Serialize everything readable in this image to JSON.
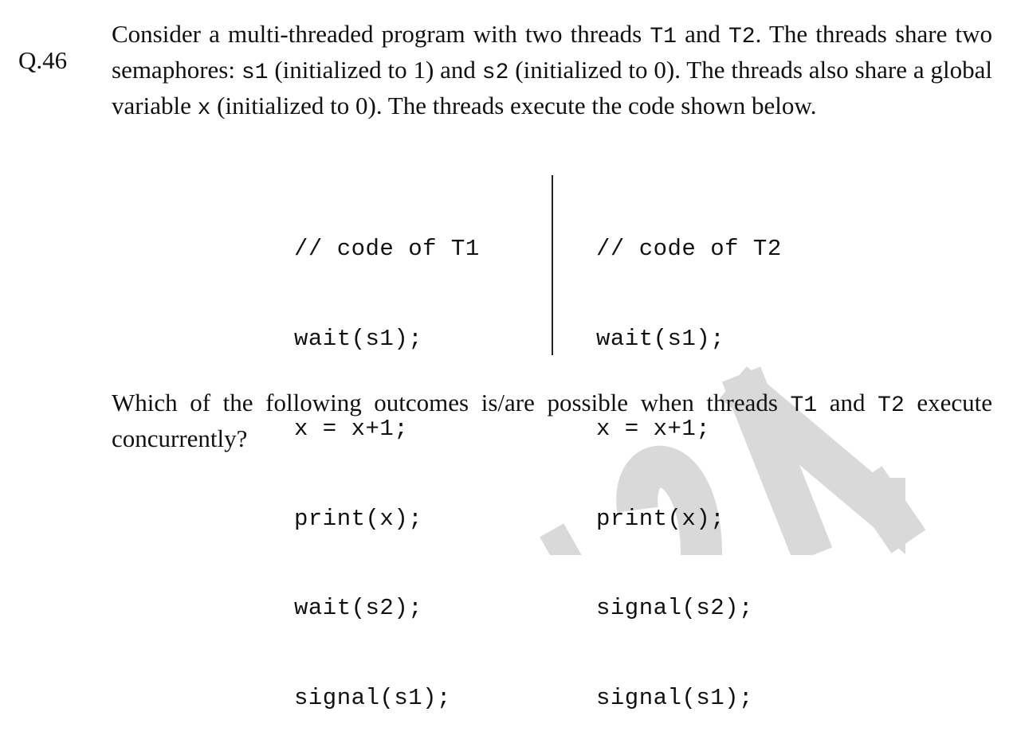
{
  "question": {
    "number": "Q.46",
    "stem": {
      "s1": "Consider a multi-threaded program with two threads ",
      "c1": "T1",
      "s2": " and ",
      "c2": "T2",
      "s3": ". The threads share two semaphores: ",
      "c3": "s1",
      "s4": " (initialized to 1) and ",
      "c4": "s2",
      "s5": " (initialized to 0). The threads also share a global variable ",
      "c5": "x",
      "s6": " (initialized to 0). The threads execute the code shown below."
    },
    "code": {
      "t1": [
        "// code of T1",
        "wait(s1);",
        "x = x+1;",
        "print(x);",
        "wait(s2);",
        "signal(s1);"
      ],
      "t2": [
        "// code of T2",
        "wait(s1);",
        "x = x+1;",
        "print(x);",
        "signal(s2);",
        "signal(s1);"
      ]
    },
    "prompt": {
      "s1": "Which of the following outcomes is/are possible when threads ",
      "c1": "T1",
      "s2": " and ",
      "c2": "T2",
      "s3": " execute concurrently?"
    }
  },
  "watermark": {
    "color": "#d9d9d9"
  }
}
